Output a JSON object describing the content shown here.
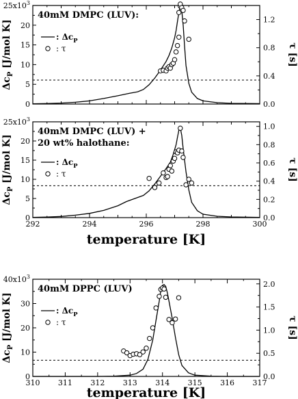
{
  "chart_data": [
    {
      "type": "line",
      "legend_position": "top-left",
      "title": "40mM DMPC (LUV):",
      "xlim": [
        292,
        300
      ],
      "ylabel_left": "Δc_P [J/mol K]",
      "ylim_left": [
        0,
        25000
      ],
      "yticks_left": [
        "0",
        "5",
        "10",
        "15",
        "20",
        "25x10³"
      ],
      "ylabel_right": "τ [s]",
      "ylim_right": [
        0,
        1.4
      ],
      "yticks_right": [
        "0.0",
        "0.4",
        "0.8",
        "1.2"
      ],
      "legend": [
        {
          "marker": "line",
          "label": ": Δc_P"
        },
        {
          "marker": "circle",
          "label": ":  τ"
        }
      ],
      "baseline_dashed": {
        "axis": "right",
        "value": 0.34
      },
      "series": [
        {
          "name": "Δc_P",
          "type": "line",
          "axis": "left",
          "x": [
            292.0,
            292.5,
            293.0,
            293.5,
            294.0,
            294.5,
            295.0,
            295.4,
            295.7,
            295.9,
            296.1,
            296.3,
            296.5,
            296.7,
            296.8,
            296.9,
            297.0,
            297.05,
            297.1,
            297.15,
            297.2,
            297.25,
            297.3,
            297.35,
            297.4,
            297.5,
            297.6,
            297.8,
            298.0,
            298.5,
            299.0,
            300.0
          ],
          "y": [
            50,
            120,
            250,
            450,
            800,
            1400,
            2100,
            2700,
            3100,
            3700,
            4900,
            6600,
            8600,
            10800,
            12300,
            14200,
            16800,
            18600,
            21000,
            23200,
            24900,
            23800,
            20000,
            14800,
            9800,
            5200,
            3000,
            1400,
            800,
            350,
            180,
            100
          ]
        },
        {
          "name": "τ",
          "type": "scatter",
          "axis": "right",
          "x": [
            296.5,
            296.6,
            296.7,
            296.75,
            296.8,
            296.85,
            296.9,
            296.95,
            297.0,
            297.05,
            297.1,
            297.15,
            297.15,
            297.2,
            297.2,
            297.25,
            297.3,
            297.35,
            297.5
          ],
          "y": [
            0.47,
            0.48,
            0.47,
            0.51,
            0.53,
            0.51,
            0.56,
            0.58,
            0.63,
            0.74,
            0.83,
            0.95,
            1.3,
            1.39,
            1.42,
            1.37,
            1.33,
            1.18,
            0.92
          ]
        }
      ]
    },
    {
      "type": "line",
      "legend_position": "top-left",
      "title": "40mM DMPC (LUV) +",
      "subtitle": "20 wt% halothane:",
      "xlabel": "temperature [K]",
      "xlim": [
        292,
        300
      ],
      "xticks": [
        "292",
        "294",
        "296",
        "298",
        "300"
      ],
      "ylabel_left": "Δc_P [J/mol K]",
      "ylim_left": [
        0,
        25000
      ],
      "yticks_left": [
        "0",
        "5",
        "10",
        "15",
        "20",
        "25x10³"
      ],
      "ylabel_right": "τ [s]",
      "ylim_right": [
        0,
        1.05
      ],
      "yticks_right": [
        "0.0",
        "0.2",
        "0.4",
        "0.6",
        "0.8",
        "1.0"
      ],
      "legend": [
        {
          "marker": "line",
          "label": ": Δc_P"
        },
        {
          "marker": "circle",
          "label": ":  τ"
        }
      ],
      "baseline_dashed": {
        "axis": "right",
        "value": 0.35
      },
      "series": [
        {
          "name": "Δc_P",
          "type": "line",
          "axis": "left",
          "x": [
            292.0,
            292.5,
            293.0,
            293.5,
            294.0,
            294.5,
            295.0,
            295.3,
            295.6,
            295.9,
            296.1,
            296.3,
            296.5,
            296.7,
            296.85,
            296.95,
            297.05,
            297.1,
            297.15,
            297.2,
            297.25,
            297.3,
            297.4,
            297.5,
            297.6,
            297.8,
            298.0,
            298.5,
            299.0,
            300.0
          ],
          "y": [
            50,
            150,
            300,
            650,
            1100,
            1900,
            3100,
            4200,
            5000,
            5800,
            7000,
            8800,
            10800,
            12800,
            14500,
            16500,
            19000,
            21000,
            22800,
            23400,
            21500,
            18000,
            12000,
            7200,
            4000,
            1800,
            900,
            350,
            180,
            80
          ]
        },
        {
          "name": "τ",
          "type": "scatter",
          "axis": "right",
          "x": [
            296.1,
            296.3,
            296.45,
            296.6,
            296.7,
            296.75,
            296.8,
            296.85,
            296.9,
            296.95,
            297.0,
            297.05,
            297.1,
            297.15,
            297.2,
            297.25,
            297.3,
            297.4,
            297.5,
            297.6
          ],
          "y": [
            0.43,
            0.33,
            0.38,
            0.49,
            0.44,
            0.45,
            0.53,
            0.57,
            0.51,
            0.62,
            0.65,
            0.72,
            0.71,
            0.74,
            0.98,
            0.73,
            0.66,
            0.36,
            0.42,
            0.38
          ]
        }
      ]
    },
    {
      "type": "line",
      "legend_position": "top-left",
      "title": "40mM DPPC (LUV)",
      "xlabel": "temperature [K]",
      "xlim": [
        310,
        317
      ],
      "xticks": [
        "310",
        "311",
        "312",
        "313",
        "314",
        "315",
        "316",
        "317"
      ],
      "ylabel_left": "Δc_P [J/mol K]",
      "ylim_left": [
        0,
        40000
      ],
      "yticks_left": [
        "0",
        "10",
        "20",
        "30",
        "40x10³"
      ],
      "ylabel_right": "τ [s]",
      "ylim_right": [
        0,
        2.1
      ],
      "yticks_right": [
        "0.0",
        "0.5",
        "1.0",
        "1.5",
        "2.0"
      ],
      "legend": [
        {
          "marker": "line",
          "label": ": Δc_P"
        },
        {
          "marker": "circle",
          "label": ":  τ"
        }
      ],
      "baseline_dashed": {
        "axis": "right",
        "value": 0.35
      },
      "series": [
        {
          "name": "Δc_P",
          "type": "line",
          "axis": "left",
          "x": [
            310.0,
            311.0,
            312.0,
            312.5,
            313.0,
            313.2,
            313.4,
            313.55,
            313.7,
            313.8,
            313.9,
            313.95,
            314.0,
            314.05,
            314.1,
            314.15,
            314.2,
            314.3,
            314.4,
            314.5,
            314.6,
            314.8,
            315.0,
            315.5,
            316.0,
            317.0
          ],
          "y": [
            0,
            0,
            0,
            100,
            500,
            1200,
            3000,
            7000,
            15000,
            23000,
            31000,
            35500,
            37500,
            37800,
            37000,
            34500,
            31000,
            24000,
            16000,
            9000,
            4500,
            1500,
            500,
            100,
            0,
            0
          ]
        },
        {
          "name": "τ",
          "type": "scatter",
          "axis": "right",
          "x": [
            312.8,
            312.9,
            313.0,
            313.1,
            313.2,
            313.3,
            313.4,
            313.5,
            313.6,
            313.7,
            313.8,
            313.9,
            313.95,
            314.0,
            314.05,
            314.1,
            314.2,
            314.3,
            314.4,
            314.5
          ],
          "y": [
            0.55,
            0.51,
            0.45,
            0.48,
            0.49,
            0.47,
            0.53,
            0.61,
            0.82,
            1.05,
            1.48,
            1.73,
            1.88,
            1.91,
            1.89,
            1.71,
            1.23,
            1.16,
            1.24,
            1.7
          ]
        }
      ]
    }
  ]
}
